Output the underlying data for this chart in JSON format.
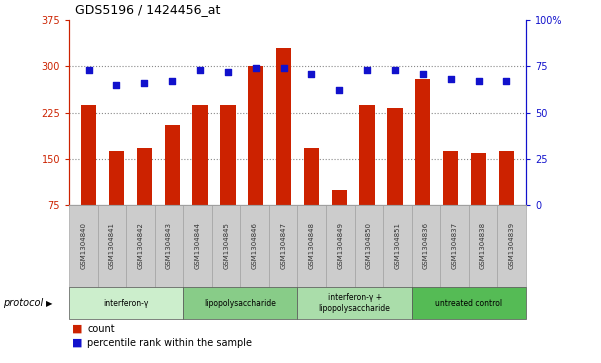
{
  "title": "GDS5196 / 1424456_at",
  "samples": [
    "GSM1304840",
    "GSM1304841",
    "GSM1304842",
    "GSM1304843",
    "GSM1304844",
    "GSM1304845",
    "GSM1304846",
    "GSM1304847",
    "GSM1304848",
    "GSM1304849",
    "GSM1304850",
    "GSM1304851",
    "GSM1304836",
    "GSM1304837",
    "GSM1304838",
    "GSM1304839"
  ],
  "counts": [
    238,
    162,
    168,
    205,
    237,
    238,
    300,
    330,
    168,
    100,
    237,
    232,
    280,
    163,
    160,
    162
  ],
  "percentiles": [
    73,
    65,
    66,
    67,
    73,
    72,
    74,
    74,
    71,
    62,
    73,
    73,
    71,
    68,
    67,
    67
  ],
  "ylim_left": [
    75,
    375
  ],
  "ylim_right": [
    0,
    100
  ],
  "yticks_left": [
    75,
    150,
    225,
    300,
    375
  ],
  "yticks_right": [
    0,
    25,
    50,
    75,
    100
  ],
  "bar_color": "#cc2200",
  "dot_color": "#1111cc",
  "bar_width": 0.55,
  "groups": [
    {
      "label": "interferon-γ",
      "start": 0,
      "end": 4,
      "color": "#cceecc"
    },
    {
      "label": "lipopolysaccharide",
      "start": 4,
      "end": 8,
      "color": "#88cc88"
    },
    {
      "label": "interferon-γ +\nlipopolysaccharide",
      "start": 8,
      "end": 12,
      "color": "#aaddaa"
    },
    {
      "label": "untreated control",
      "start": 12,
      "end": 16,
      "color": "#55bb55"
    }
  ],
  "protocol_label": "protocol",
  "legend_count": "count",
  "legend_percentile": "percentile rank within the sample",
  "grid_color": "#888888",
  "hgrid_ticks": [
    150,
    225,
    300
  ],
  "left_axis_color": "#cc2200",
  "right_axis_color": "#1111cc",
  "xtick_box_color": "#cccccc",
  "xtick_box_edge": "#999999"
}
